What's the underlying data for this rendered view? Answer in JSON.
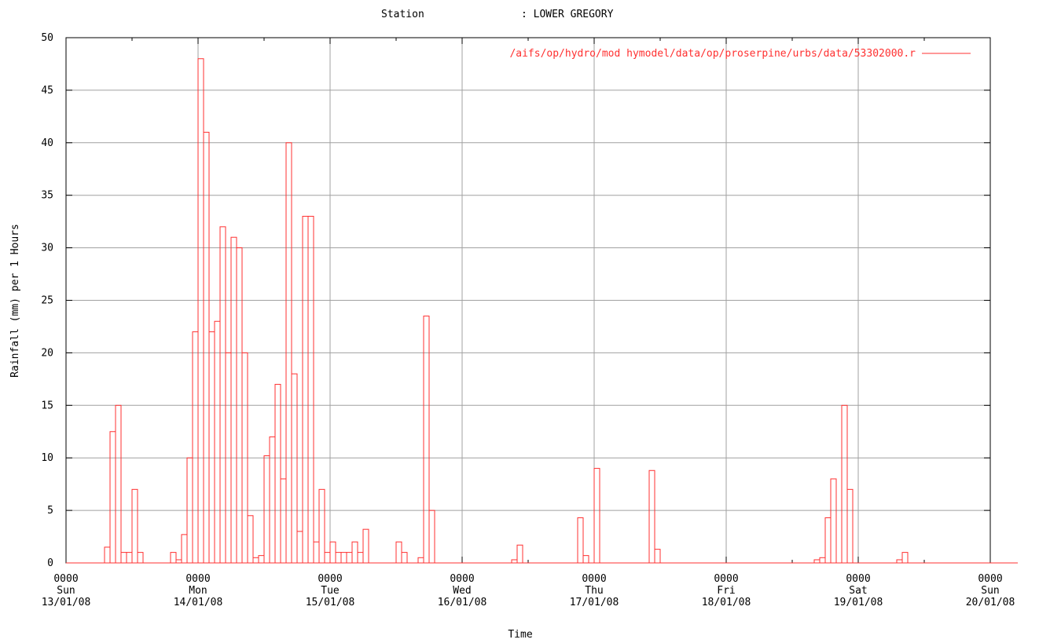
{
  "chart_data": {
    "type": "bar",
    "title_label": "Station",
    "title_value": ": LOWER GREGORY",
    "xlabel": "Time",
    "ylabel": "Rainfall (mm) per 1 Hours",
    "legend": "/aifs/op/hydro/mod hymodel/data/op/proserpine/urbs/data/53302000.r",
    "grid": true,
    "legend_position": "top-right",
    "color": "#ff3030",
    "ylim": [
      0,
      50
    ],
    "yticks": [
      "0",
      "5",
      "10",
      "15",
      "20",
      "25",
      "30",
      "35",
      "40",
      "45",
      "50"
    ],
    "xlim_hours": [
      0,
      168
    ],
    "xticks": [
      {
        "time": "0000",
        "day": "Sun",
        "date": "13/01/08"
      },
      {
        "time": "0000",
        "day": "Mon",
        "date": "14/01/08"
      },
      {
        "time": "0000",
        "day": "Tue",
        "date": "15/01/08"
      },
      {
        "time": "0000",
        "day": "Wed",
        "date": "16/01/08"
      },
      {
        "time": "0000",
        "day": "Thu",
        "date": "17/01/08"
      },
      {
        "time": "0000",
        "day": "Fri",
        "date": "18/01/08"
      },
      {
        "time": "0000",
        "day": "Sat",
        "date": "19/01/08"
      },
      {
        "time": "0000",
        "day": "Sun",
        "date": "20/01/08"
      }
    ],
    "series": [
      {
        "start_hour": 7,
        "end_hour": 150,
        "values": [
          1.5,
          12.5,
          15,
          1,
          1,
          7,
          1,
          0,
          0,
          0,
          0,
          0,
          1,
          0.3,
          2.7,
          10,
          22,
          48,
          41,
          22,
          23,
          32,
          20,
          31,
          30,
          20,
          4.5,
          0.5,
          0.7,
          10.2,
          12,
          17,
          8,
          40,
          18,
          3,
          33,
          33,
          2,
          7,
          1,
          2,
          1,
          1,
          1,
          2,
          1,
          3.2,
          0,
          0,
          0,
          0,
          0,
          2,
          1,
          0,
          0,
          0.5,
          23.5,
          5,
          0,
          0,
          0,
          0,
          0,
          0,
          0,
          0,
          0,
          0,
          0,
          0,
          0,
          0,
          0.3,
          1.7,
          0,
          0,
          0,
          0,
          0,
          0,
          0,
          0,
          0,
          0,
          4.3,
          0.7,
          0,
          9,
          0,
          0,
          0,
          0,
          0,
          0,
          0,
          0,
          0,
          8.8,
          1.3,
          0,
          0,
          0,
          0,
          0,
          0,
          0,
          0,
          0,
          0,
          0,
          0,
          0,
          0,
          0,
          0,
          0,
          0,
          0,
          0,
          0,
          0,
          0,
          0,
          0,
          0,
          0,
          0,
          0.3,
          0.5,
          4.3,
          8,
          0,
          15,
          7,
          0,
          0,
          0,
          0,
          0,
          0,
          0,
          0,
          0.3,
          1,
          0,
          0,
          0,
          0,
          0,
          0,
          0,
          0,
          0,
          0,
          0,
          0,
          0,
          0,
          0,
          0,
          0,
          0,
          0,
          0
        ]
      }
    ]
  }
}
